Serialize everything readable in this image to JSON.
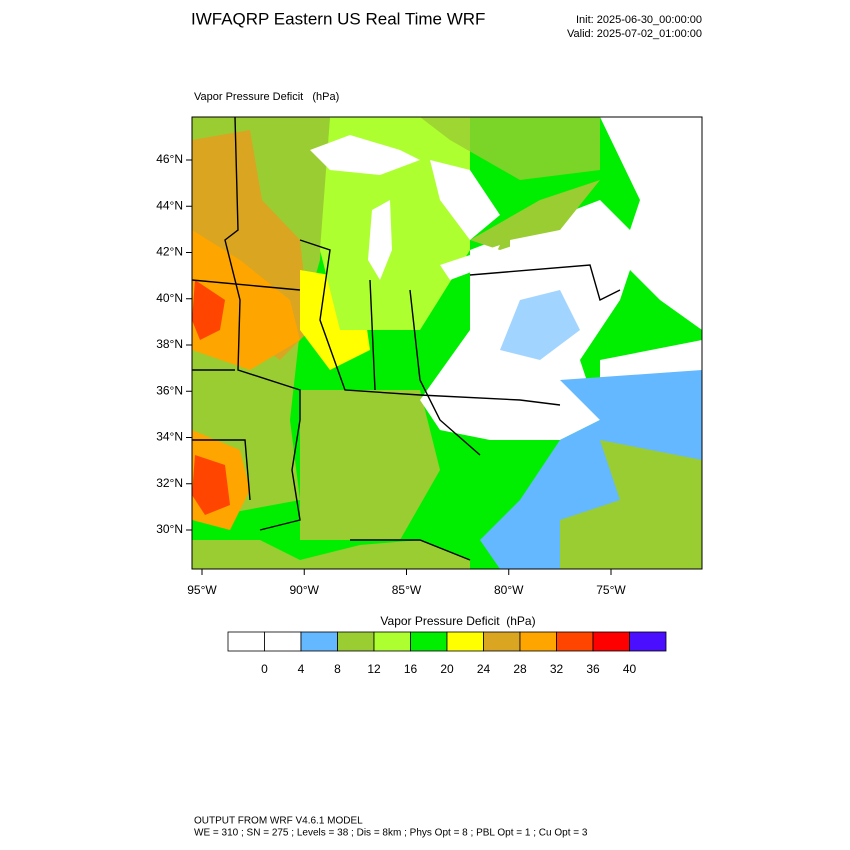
{
  "header": {
    "title": "IWFAQRP Eastern US Real Time WRF",
    "init": "Init: 2025-06-30_00:00:00",
    "valid": "Valid: 2025-07-02_01:00:00"
  },
  "map": {
    "label": "Vapor Pressure Deficit   (hPa)",
    "lat_labels": [
      "46°N",
      "44°N",
      "42°N",
      "40°N",
      "38°N",
      "36°N",
      "34°N",
      "32°N",
      "30°N"
    ],
    "lon_labels": [
      "95°W",
      "90°W",
      "85°W",
      "80°W",
      "75°W"
    ]
  },
  "colorbar": {
    "title": "Vapor Pressure Deficit  (hPa)",
    "colors": [
      "#ffffff",
      "#ffffff",
      "#63b8ff",
      "#9acd32",
      "#adff2f",
      "#00ee00",
      "#ffff00",
      "#daa520",
      "#ffa500",
      "#ff4500",
      "#ff0000",
      "#4b0fff"
    ],
    "levels": [
      0,
      4,
      8,
      12,
      16,
      20,
      24,
      28,
      32,
      36,
      40
    ]
  },
  "footer": {
    "line1": "OUTPUT FROM WRF V4.6.1 MODEL",
    "line2": "WE = 310 ; SN = 275 ; Levels = 38 ; Dis = 8km ; Phys Opt = 8 ; PBL Opt = 1 ; Cu Opt = 3"
  }
}
